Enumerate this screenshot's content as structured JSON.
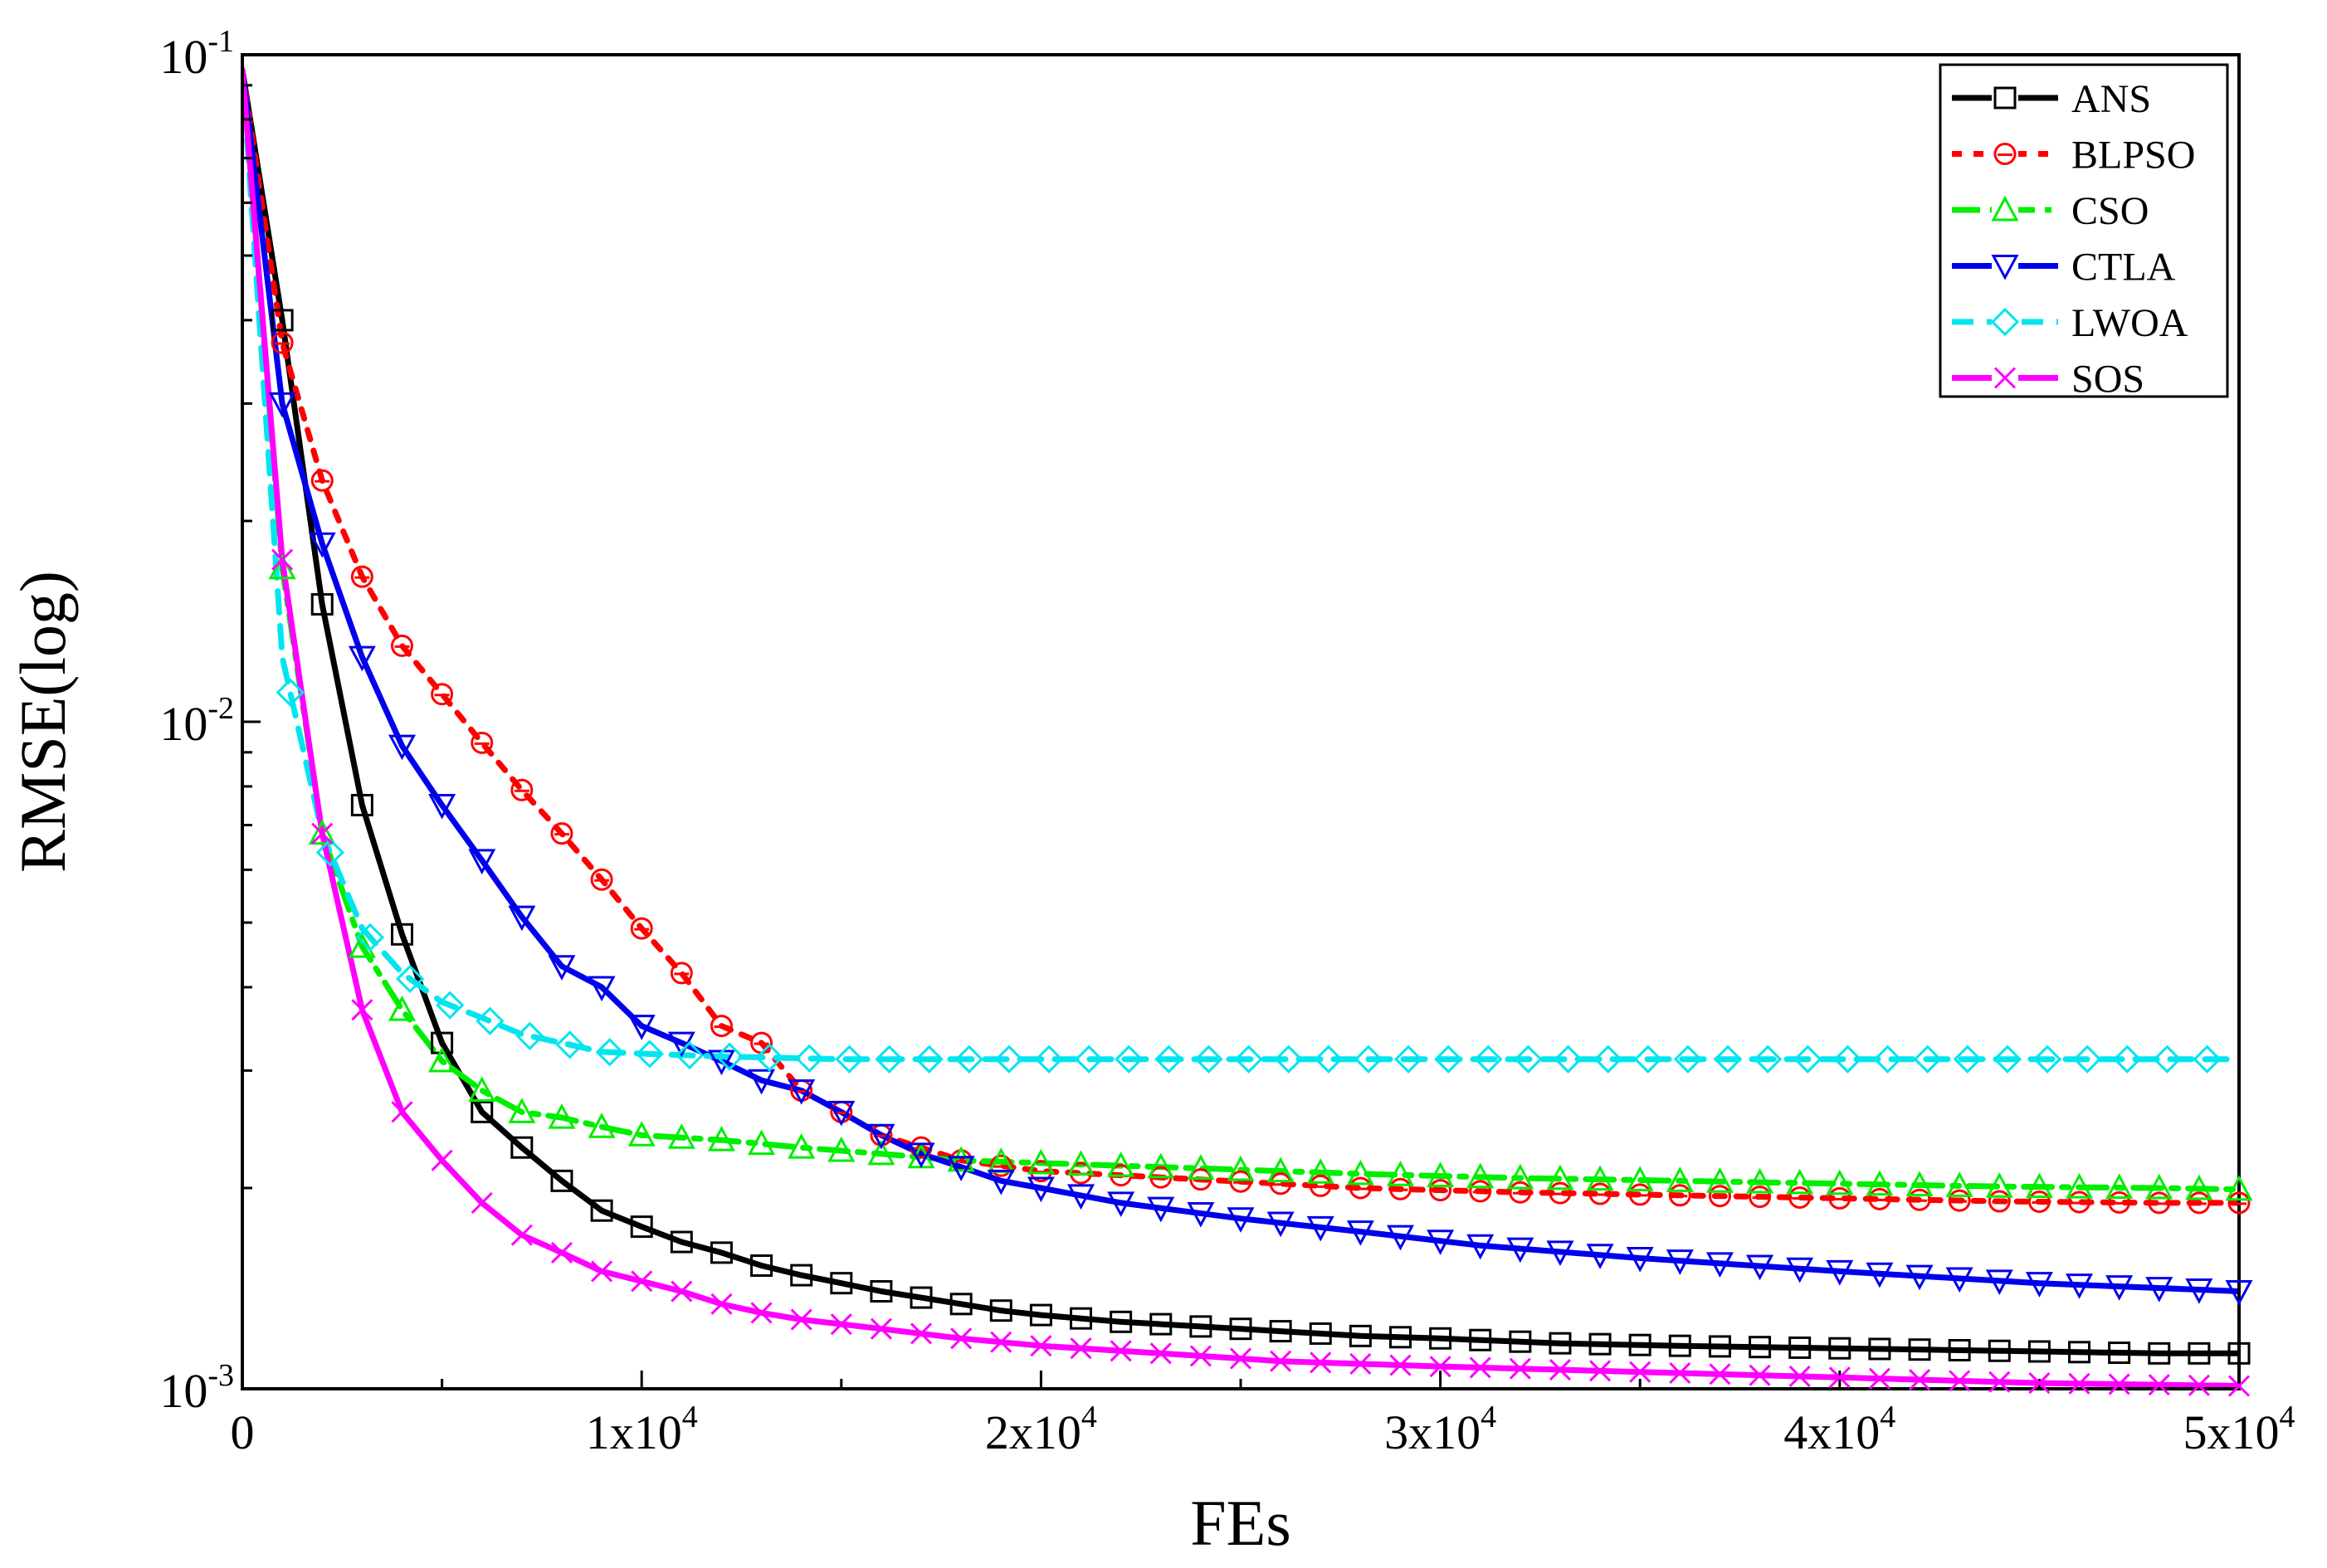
{
  "chart_data": {
    "type": "line",
    "title": "",
    "xlabel": "FEs",
    "ylabel": "RMSE(log)",
    "xscale": "linear",
    "yscale": "log",
    "xlim": [
      0,
      50000
    ],
    "ylim": [
      0.001,
      0.1
    ],
    "grid": false,
    "legend_position": "top-right",
    "x_ticks": [
      {
        "value": 0,
        "mantissa": "0",
        "exponent": ""
      },
      {
        "value": 10000,
        "mantissa": "1x10",
        "exponent": "4"
      },
      {
        "value": 20000,
        "mantissa": "2x10",
        "exponent": "4"
      },
      {
        "value": 30000,
        "mantissa": "3x10",
        "exponent": "4"
      },
      {
        "value": 40000,
        "mantissa": "4x10",
        "exponent": "4"
      },
      {
        "value": 50000,
        "mantissa": "5x10",
        "exponent": "4"
      }
    ],
    "y_ticks": [
      {
        "value": 0.001,
        "mantissa": "10",
        "exponent": "-3"
      },
      {
        "value": 0.01,
        "mantissa": "10",
        "exponent": "-2"
      },
      {
        "value": 0.1,
        "mantissa": "10",
        "exponent": "-1"
      }
    ],
    "series": [
      {
        "name": "ANS",
        "color": "#000000",
        "marker": "square",
        "dash": "solid-dashed",
        "x": [
          0,
          1000,
          2000,
          3000,
          4000,
          5000,
          6000,
          7000,
          8000,
          9000,
          10000,
          11000,
          12000,
          13000,
          14000,
          15000,
          16000,
          17000,
          18000,
          19000,
          20000,
          22000,
          24000,
          26000,
          28000,
          30000,
          33000,
          36000,
          40000,
          44000,
          48000,
          50000
        ],
        "values": [
          0.095,
          0.04,
          0.015,
          0.0075,
          0.0048,
          0.0033,
          0.0026,
          0.0023,
          0.00205,
          0.00185,
          0.00175,
          0.00166,
          0.0016,
          0.00153,
          0.00148,
          0.00144,
          0.0014,
          0.00137,
          0.00134,
          0.00131,
          0.00129,
          0.00126,
          0.00124,
          0.00122,
          0.0012,
          0.00119,
          0.00117,
          0.00116,
          0.00115,
          0.00114,
          0.00113,
          0.00113
        ]
      },
      {
        "name": "BLPSO",
        "color": "#ff0000",
        "marker": "circle",
        "dash": "dotted",
        "x": [
          0,
          1000,
          2000,
          3000,
          4000,
          5000,
          6000,
          7000,
          8000,
          9000,
          10000,
          11000,
          12000,
          13000,
          14000,
          15000,
          16000,
          17000,
          18000,
          20000,
          24000,
          28000,
          32000,
          36000,
          40000,
          44000,
          48000,
          50000
        ],
        "values": [
          0.095,
          0.037,
          0.023,
          0.0165,
          0.013,
          0.011,
          0.0093,
          0.0079,
          0.0068,
          0.0058,
          0.0049,
          0.0042,
          0.0035,
          0.0033,
          0.0028,
          0.0026,
          0.0024,
          0.0023,
          0.0022,
          0.00212,
          0.00206,
          0.002,
          0.00197,
          0.00195,
          0.00193,
          0.00191,
          0.0019,
          0.0019
        ]
      },
      {
        "name": "CSO",
        "color": "#00ee00",
        "marker": "triangle-up",
        "dash": "dash-dot",
        "x": [
          0,
          1000,
          2000,
          3000,
          4000,
          5000,
          6000,
          7000,
          8000,
          9000,
          10000,
          12000,
          14000,
          16000,
          18000,
          20000,
          24000,
          28000,
          32000,
          36000,
          40000,
          44000,
          48000,
          50000
        ],
        "values": [
          0.095,
          0.017,
          0.0068,
          0.0046,
          0.0037,
          0.0031,
          0.0028,
          0.0026,
          0.00255,
          0.00247,
          0.0024,
          0.00236,
          0.0023,
          0.00225,
          0.0022,
          0.00218,
          0.00214,
          0.0021,
          0.00207,
          0.00205,
          0.00203,
          0.00201,
          0.002,
          0.00199
        ]
      },
      {
        "name": "CTLA",
        "color": "#0000ee",
        "marker": "triangle-down",
        "dash": "solid-dashed",
        "x": [
          0,
          1000,
          2000,
          3000,
          4000,
          5000,
          6000,
          7000,
          8000,
          9000,
          10000,
          11000,
          12000,
          13000,
          14000,
          15000,
          16000,
          17000,
          18000,
          19000,
          20000,
          22000,
          25000,
          28000,
          31000,
          35000,
          40000,
          45000,
          50000
        ],
        "values": [
          0.095,
          0.03,
          0.0185,
          0.0125,
          0.0092,
          0.0075,
          0.0062,
          0.0051,
          0.0043,
          0.004,
          0.0035,
          0.0033,
          0.0031,
          0.0029,
          0.0028,
          0.0026,
          0.0024,
          0.00225,
          0.00215,
          0.00205,
          0.002,
          0.0019,
          0.0018,
          0.00172,
          0.00164,
          0.00157,
          0.0015,
          0.00144,
          0.0014
        ]
      },
      {
        "name": "LWOA",
        "color": "#00e5ee",
        "marker": "diamond",
        "dash": "dashed",
        "x": [
          0,
          1000,
          2000,
          3000,
          4000,
          5000,
          6000,
          7000,
          8000,
          9000,
          10000,
          12000,
          15000,
          20000,
          25000,
          30000,
          35000,
          40000,
          45000,
          50000
        ],
        "values": [
          0.095,
          0.0125,
          0.0068,
          0.0049,
          0.0042,
          0.0038,
          0.0036,
          0.0034,
          0.0033,
          0.0032,
          0.00318,
          0.00315,
          0.00312,
          0.00312,
          0.00312,
          0.00312,
          0.00312,
          0.00312,
          0.00312,
          0.00312
        ]
      },
      {
        "name": "SOS",
        "color": "#ff00ff",
        "marker": "x",
        "dash": "solid",
        "x": [
          0,
          1000,
          2000,
          3000,
          4000,
          5000,
          6000,
          7000,
          8000,
          9000,
          10000,
          11000,
          12000,
          13000,
          14000,
          16000,
          18000,
          20000,
          23000,
          26000,
          30000,
          35000,
          40000,
          45000,
          50000
        ],
        "values": [
          0.095,
          0.0175,
          0.0068,
          0.0037,
          0.0026,
          0.0022,
          0.0019,
          0.0017,
          0.0016,
          0.0015,
          0.00145,
          0.0014,
          0.00134,
          0.0013,
          0.00127,
          0.00123,
          0.00119,
          0.00116,
          0.00113,
          0.0011,
          0.00108,
          0.00106,
          0.00104,
          0.00102,
          0.00101
        ]
      }
    ]
  }
}
